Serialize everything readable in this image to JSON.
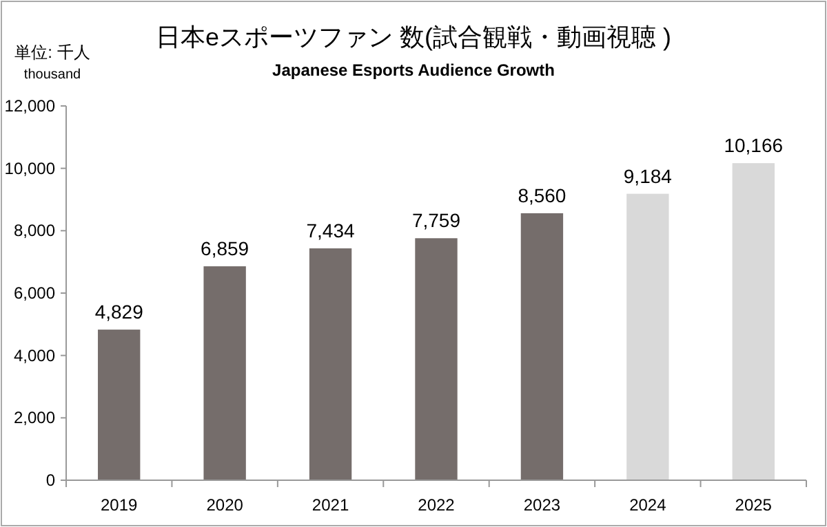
{
  "chart_data": {
    "type": "bar",
    "title": "日本eスポーツファン 数(試合観戦・動画視聴 )",
    "subtitle": "Japanese Esports Audience Growth",
    "ylabel": "単位: 千人",
    "annotations": [
      "thousand"
    ],
    "categories": [
      "2019",
      "2020",
      "2021",
      "2022",
      "2023",
      "2024",
      "2025"
    ],
    "values": [
      4829,
      6859,
      7434,
      7759,
      8560,
      9184,
      10166
    ],
    "value_labels": [
      "4,829",
      "6,859",
      "7,434",
      "7,759",
      "8,560",
      "9,184",
      "10,166"
    ],
    "colors": [
      "#756d6b",
      "#756d6b",
      "#756d6b",
      "#756d6b",
      "#756d6b",
      "#d9d9d9",
      "#d9d9d9"
    ],
    "ylim": [
      0,
      12000
    ],
    "yticks": [
      0,
      {
        "value": 2000,
        "label": "2,000"
      },
      {
        "value": 4000,
        "label": "4,000"
      },
      {
        "value": 6000,
        "label": "6,000"
      },
      {
        "value": 8000,
        "label": "8,000"
      },
      {
        "value": 10000,
        "label": "10,000"
      },
      {
        "value": 12000,
        "label": "12,000"
      }
    ],
    "grid": false
  }
}
